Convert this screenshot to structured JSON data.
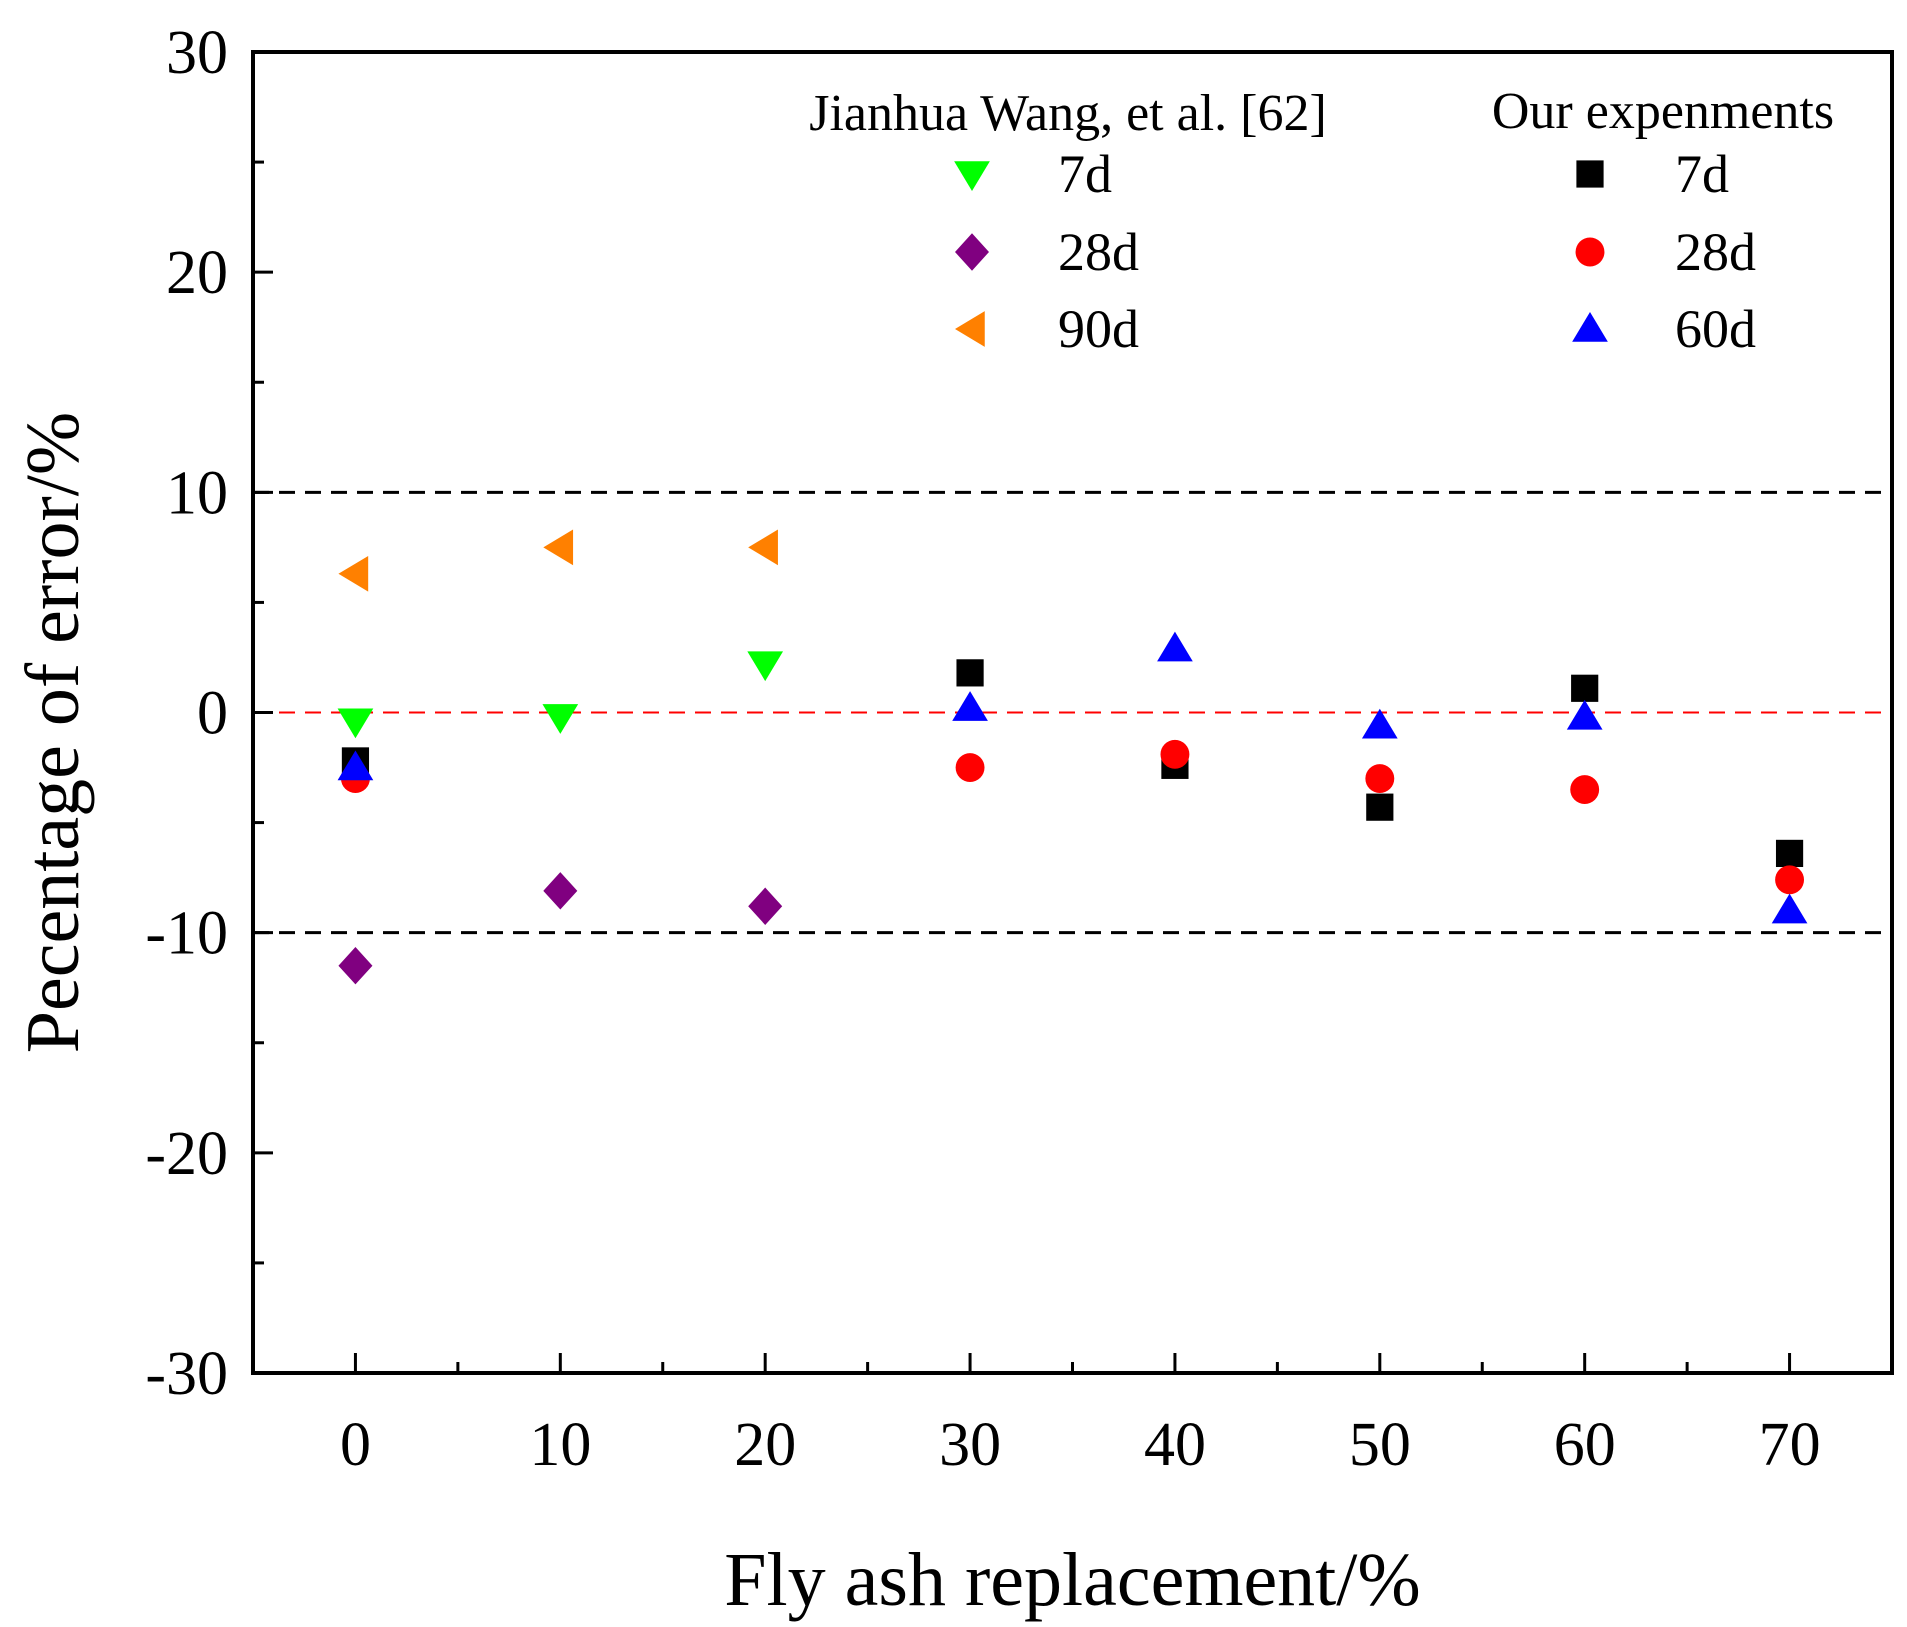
{
  "chart_data": {
    "type": "scatter",
    "xlabel": "Fly ash replacement/%",
    "ylabel": "Pecentage of error/%",
    "xlim": [
      -5,
      75
    ],
    "ylim": [
      -30,
      30
    ],
    "x_ticks": [
      0,
      10,
      20,
      30,
      40,
      50,
      60,
      70
    ],
    "y_ticks": [
      -30,
      -20,
      -10,
      0,
      10,
      20,
      30
    ],
    "reference_lines": [
      {
        "y": 10,
        "color": "#000000",
        "style": "dashed"
      },
      {
        "y": 0,
        "color": "#ff0000",
        "style": "dashed"
      },
      {
        "y": -10,
        "color": "#000000",
        "style": "dashed"
      }
    ],
    "legend_groups": [
      {
        "title": "Jianhua Wang, et al. [62]",
        "series": [
          {
            "name": "7d",
            "marker": "triangle-down",
            "color": "#00ff00",
            "x": [
              0,
              10,
              20
            ],
            "y": [
              -0.4,
              -0.2,
              2.2
            ]
          },
          {
            "name": "28d",
            "marker": "diamond",
            "color": "#800080",
            "x": [
              0,
              10,
              20
            ],
            "y": [
              -11.5,
              -8.1,
              -8.8
            ]
          },
          {
            "name": "90d",
            "marker": "triangle-left",
            "color": "#ff8000",
            "x": [
              0,
              10,
              20
            ],
            "y": [
              6.3,
              7.5,
              7.5
            ]
          }
        ]
      },
      {
        "title": "Our expenments",
        "series": [
          {
            "name": "7d",
            "marker": "square",
            "color": "#000000",
            "x": [
              0,
              30,
              40,
              50,
              60,
              70
            ],
            "y": [
              -2.2,
              1.8,
              -2.4,
              -4.3,
              1.1,
              -6.4
            ]
          },
          {
            "name": "28d",
            "marker": "circle",
            "color": "#ff0000",
            "x": [
              0,
              30,
              40,
              50,
              60,
              70
            ],
            "y": [
              -3.0,
              -2.5,
              -1.9,
              -3.0,
              -3.5,
              -7.6
            ]
          },
          {
            "name": "60d",
            "marker": "triangle-up",
            "color": "#0000ff",
            "x": [
              0,
              30,
              40,
              50,
              60,
              70
            ],
            "y": [
              -2.5,
              0.2,
              2.9,
              -0.6,
              -0.2,
              -9.0
            ]
          }
        ]
      }
    ],
    "grid": false
  }
}
